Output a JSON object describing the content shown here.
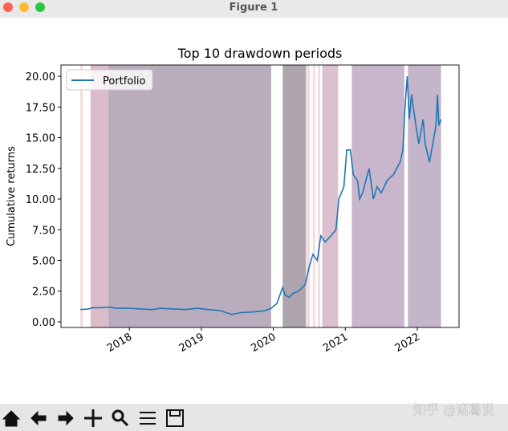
{
  "window": {
    "title": "Figure 1",
    "watermark": "知乎 @诸葛说"
  },
  "chart_data": {
    "type": "line",
    "title": "Top 10 drawdown periods",
    "y_label": "Cumulative returns",
    "xlim": [
      2017.05,
      2022.58
    ],
    "xticks": [
      2018,
      2019,
      2020,
      2021,
      2022
    ],
    "ylim": [
      -0.46,
      20.92
    ],
    "yticks": [
      {
        "value": 0,
        "label": "0.00"
      },
      {
        "value": 2.5,
        "label": "2.50"
      },
      {
        "value": 5,
        "label": "5.00"
      },
      {
        "value": 7.5,
        "label": "7.50"
      },
      {
        "value": 10,
        "label": "10.00"
      },
      {
        "value": 12.5,
        "label": "12.50"
      },
      {
        "value": 15,
        "label": "15.00"
      },
      {
        "value": 17.5,
        "label": "17.50"
      },
      {
        "value": 20,
        "label": "20.00"
      }
    ],
    "legend": "upper left",
    "series": [
      {
        "name": "Portfolio",
        "color": "#1f77b4",
        "x": [
          2017.32,
          2017.43,
          2017.49,
          2017.6,
          2017.71,
          2017.82,
          2017.99,
          2018.16,
          2018.32,
          2018.43,
          2018.6,
          2018.77,
          2018.94,
          2019.1,
          2019.27,
          2019.42,
          2019.55,
          2019.72,
          2019.88,
          2019.97,
          2020.05,
          2020.11,
          2020.13,
          2020.16,
          2020.22,
          2020.27,
          2020.35,
          2020.44,
          2020.5,
          2020.55,
          2020.61,
          2020.66,
          2020.72,
          2020.8,
          2020.87,
          2020.91,
          2020.98,
          2021.02,
          2021.07,
          2021.11,
          2021.17,
          2021.2,
          2021.24,
          2021.33,
          2021.39,
          2021.44,
          2021.5,
          2021.58,
          2021.67,
          2021.76,
          2021.8,
          2021.83,
          2021.86,
          2021.89,
          2021.92,
          2021.98,
          2022.02,
          2022.08,
          2022.11,
          2022.17,
          2022.23,
          2022.26,
          2022.28,
          2022.3,
          2022.33
        ],
        "values": [
          1.0,
          1.05,
          1.15,
          1.15,
          1.2,
          1.1,
          1.1,
          1.05,
          1.0,
          1.1,
          1.05,
          1.0,
          1.1,
          1.0,
          0.9,
          0.6,
          0.75,
          0.8,
          0.9,
          1.1,
          1.5,
          2.5,
          2.8,
          2.2,
          2.0,
          2.3,
          2.5,
          3.0,
          4.5,
          5.5,
          5.0,
          7.0,
          6.5,
          7.0,
          7.5,
          10.0,
          11.0,
          14.0,
          14.0,
          12.0,
          11.5,
          10.0,
          10.5,
          12.5,
          10.0,
          11.0,
          10.5,
          11.5,
          12.0,
          13.0,
          14.0,
          17.5,
          20.0,
          16.5,
          18.5,
          16.0,
          14.5,
          16.5,
          14.5,
          13.0,
          15.0,
          16.0,
          18.5,
          16.0,
          16.5
        ]
      }
    ],
    "shaded_regions": [
      {
        "x": [
          2017.32,
          2017.35
        ],
        "color": "#f3d6d6"
      },
      {
        "x": [
          2017.46,
          2017.71
        ],
        "color": "#dcbccb"
      },
      {
        "x": [
          2017.71,
          2019.97
        ],
        "color": "#b9acbd"
      },
      {
        "x": [
          2020.13,
          2020.45
        ],
        "color": "#ada4ae"
      },
      {
        "x": [
          2020.45,
          2020.51
        ],
        "color": "#f0dde3"
      },
      {
        "x": [
          2020.55,
          2020.58
        ],
        "color": "#f3dcdc"
      },
      {
        "x": [
          2020.62,
          2020.65
        ],
        "color": "#f3dcdc"
      },
      {
        "x": [
          2020.68,
          2020.9
        ],
        "color": "#ddc0cf"
      },
      {
        "x": [
          2021.09,
          2021.82
        ],
        "color": "#c8b6cc"
      },
      {
        "x": [
          2021.87,
          2022.33
        ],
        "color": "#c5b5ca"
      }
    ]
  }
}
